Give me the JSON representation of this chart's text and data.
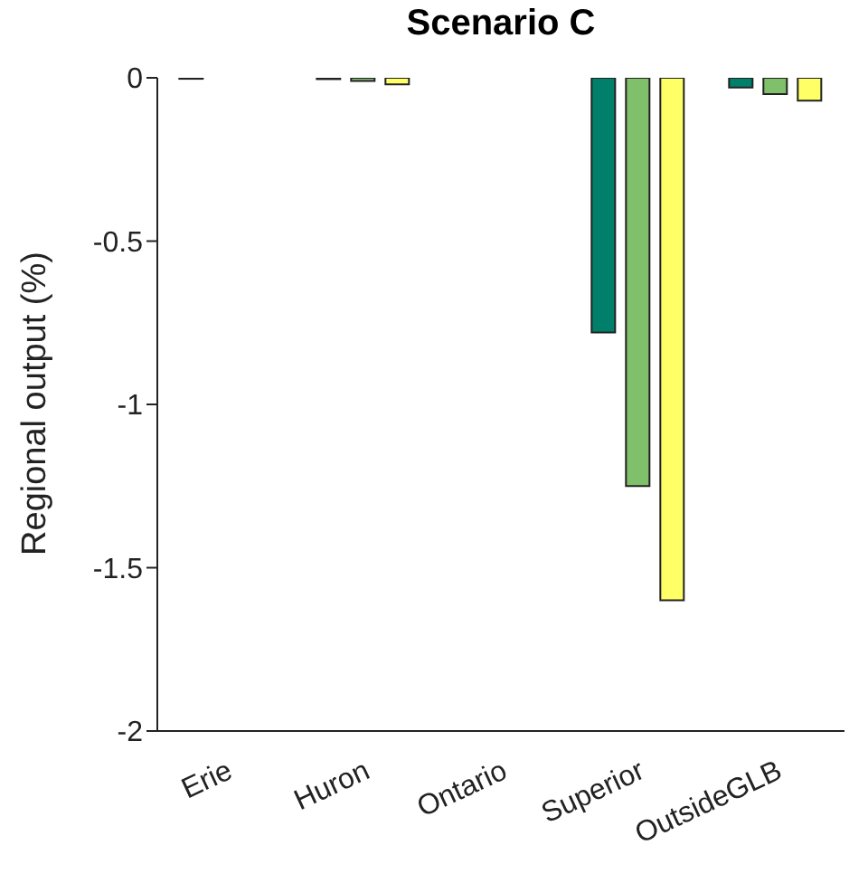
{
  "chart_data": {
    "type": "bar",
    "title": "Scenario C",
    "ylabel": "Regional output (%)",
    "categories": [
      "Erie",
      "Huron",
      "Ontario",
      "Superior",
      "OutsideGLB"
    ],
    "series": [
      {
        "color": "#00806a",
        "values": [
          -0.003,
          -0.004,
          0,
          -0.78,
          -0.03
        ]
      },
      {
        "color": "#80c06a",
        "values": [
          0,
          -0.01,
          0,
          -1.25,
          -0.05
        ]
      },
      {
        "color": "#ffff66",
        "values": [
          0,
          -0.02,
          0,
          -1.6,
          -0.07
        ]
      }
    ],
    "ylim": [
      -2,
      0
    ],
    "yticks": [
      -2,
      -1.5,
      -1,
      -0.5,
      0
    ],
    "grid": false,
    "legend": false
  }
}
